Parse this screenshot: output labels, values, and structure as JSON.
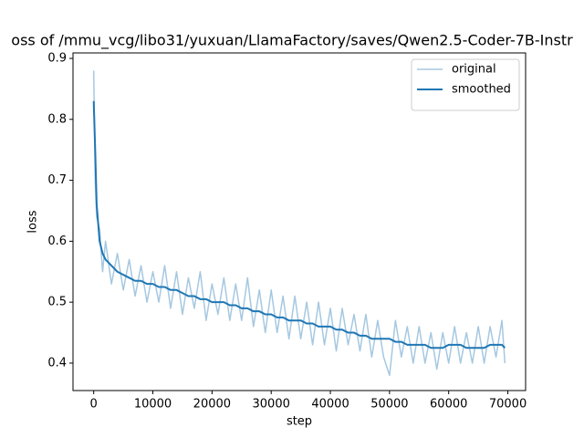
{
  "chart_data": {
    "type": "line",
    "title": "oss of /mmu_vcg/libo31/yuxuan/LlamaFactory/saves/Qwen2.5-Coder-7B-Instr",
    "x_label": "step",
    "y_label": "loss",
    "x": [
      0,
      250,
      500,
      1000,
      1500,
      2000,
      3000,
      4000,
      5000,
      6000,
      7000,
      8000,
      9000,
      10000,
      11000,
      12000,
      13000,
      14000,
      15000,
      16000,
      17000,
      18000,
      19000,
      20000,
      21000,
      22000,
      23000,
      24000,
      25000,
      26000,
      27000,
      28000,
      29000,
      30000,
      31000,
      32000,
      33000,
      34000,
      35000,
      36000,
      37000,
      38000,
      39000,
      40000,
      41000,
      42000,
      43000,
      44000,
      45000,
      46000,
      47000,
      48000,
      49000,
      50000,
      51000,
      52000,
      53000,
      54000,
      55000,
      56000,
      57000,
      58000,
      59000,
      60000,
      61000,
      62000,
      63000,
      64000,
      65000,
      66000,
      67000,
      68000,
      69000,
      69500
    ],
    "series": [
      {
        "name": "original",
        "color": "#a5c8e1",
        "width": 1.5,
        "values": [
          0.88,
          0.7,
          0.64,
          0.62,
          0.55,
          0.6,
          0.53,
          0.58,
          0.52,
          0.57,
          0.51,
          0.56,
          0.5,
          0.55,
          0.5,
          0.56,
          0.49,
          0.55,
          0.48,
          0.54,
          0.49,
          0.55,
          0.47,
          0.53,
          0.48,
          0.54,
          0.47,
          0.53,
          0.47,
          0.54,
          0.46,
          0.52,
          0.45,
          0.52,
          0.45,
          0.51,
          0.44,
          0.51,
          0.44,
          0.5,
          0.43,
          0.5,
          0.43,
          0.49,
          0.42,
          0.49,
          0.43,
          0.48,
          0.42,
          0.48,
          0.41,
          0.47,
          0.41,
          0.38,
          0.47,
          0.41,
          0.46,
          0.4,
          0.46,
          0.4,
          0.45,
          0.39,
          0.45,
          0.4,
          0.46,
          0.4,
          0.45,
          0.4,
          0.46,
          0.4,
          0.46,
          0.41,
          0.47,
          0.4
        ]
      },
      {
        "name": "smoothed",
        "color": "#1f77b4",
        "width": 2,
        "values": [
          0.83,
          0.75,
          0.66,
          0.6,
          0.58,
          0.57,
          0.56,
          0.55,
          0.545,
          0.54,
          0.535,
          0.535,
          0.53,
          0.53,
          0.525,
          0.525,
          0.52,
          0.52,
          0.515,
          0.51,
          0.51,
          0.505,
          0.505,
          0.5,
          0.5,
          0.5,
          0.495,
          0.495,
          0.49,
          0.49,
          0.485,
          0.485,
          0.48,
          0.48,
          0.475,
          0.475,
          0.47,
          0.47,
          0.47,
          0.465,
          0.465,
          0.46,
          0.46,
          0.46,
          0.455,
          0.455,
          0.45,
          0.45,
          0.445,
          0.445,
          0.44,
          0.44,
          0.44,
          0.44,
          0.435,
          0.435,
          0.43,
          0.43,
          0.43,
          0.43,
          0.425,
          0.425,
          0.425,
          0.43,
          0.43,
          0.43,
          0.425,
          0.425,
          0.425,
          0.425,
          0.43,
          0.43,
          0.43,
          0.425
        ]
      }
    ],
    "xlim": [
      -3500,
      73000
    ],
    "xticks": [
      0,
      10000,
      20000,
      30000,
      40000,
      50000,
      60000,
      70000
    ],
    "ylim": [
      0.355,
      0.909
    ],
    "yticks": [
      0.4,
      0.5,
      0.6,
      0.7,
      0.8,
      0.9
    ],
    "grid": false,
    "legend": "upper right"
  }
}
